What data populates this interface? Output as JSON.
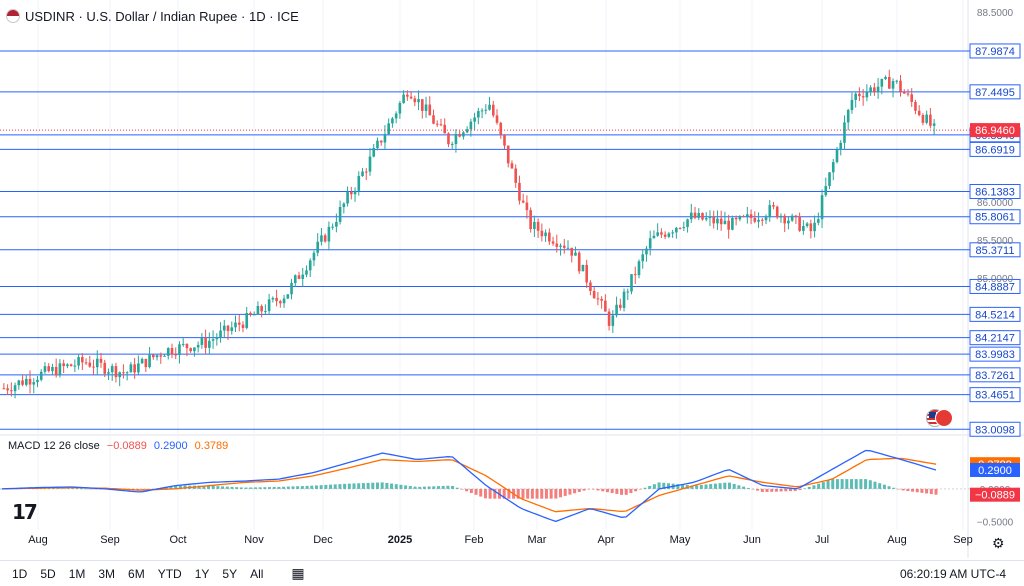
{
  "header": {
    "title": "USDINR · U.S. Dollar / Indian Rupee · 1D · ICE"
  },
  "macd_legend": {
    "label": "MACD 12 26 close",
    "hist": "−0.0889",
    "macd": "0.2900",
    "signal": "0.3789"
  },
  "colors": {
    "up": "#26a69a",
    "down": "#ef5350",
    "hline": "#2962ff",
    "macd_line": "#2962ff",
    "signal_line": "#ff6d00",
    "price_badge": "#f23645",
    "grid": "#f0f3fa"
  },
  "bottom_bar": {
    "timeframes": [
      "1D",
      "5D",
      "1M",
      "3M",
      "6M",
      "YTD",
      "1Y",
      "5Y",
      "All"
    ],
    "clock": "06:20:19 AM UTC-4"
  },
  "chart_data": [
    {
      "type": "candlestick",
      "symbol": "USDINR",
      "x_ticks": [
        "Aug",
        "Sep",
        "Oct",
        "Nov",
        "Dec",
        "2025",
        "Feb",
        "Mar",
        "Apr",
        "May",
        "Jun",
        "Jul",
        "Aug",
        "Sep"
      ],
      "y_ticks": [
        "88.5000",
        "86.0000",
        "85.5000",
        "85.0000"
      ],
      "ylim": [
        83.0,
        88.5
      ],
      "last_price": "86.9460",
      "horizontal_levels": [
        "87.9874",
        "87.4495",
        "86.8840",
        "86.6919",
        "86.1383",
        "85.8061",
        "85.3711",
        "84.8887",
        "84.5214",
        "84.2147",
        "83.9983",
        "83.7261",
        "83.4651",
        "83.0098"
      ],
      "monthly_path": [
        {
          "month": "Jul",
          "value": 83.55
        },
        {
          "month": "Aug",
          "value": 83.75
        },
        {
          "month": "Sep",
          "value": 83.9
        },
        {
          "month": "Oct",
          "value": 83.75
        },
        {
          "month": "Oct-end",
          "value": 84.05
        },
        {
          "month": "Nov",
          "value": 84.15
        },
        {
          "month": "Nov-end",
          "value": 84.45
        },
        {
          "month": "Dec",
          "value": 84.8
        },
        {
          "month": "2025",
          "value": 85.6
        },
        {
          "month": "Jan-mid",
          "value": 86.5
        },
        {
          "month": "Feb",
          "value": 87.5
        },
        {
          "month": "Feb-mid",
          "value": 86.8
        },
        {
          "month": "Mar",
          "value": 87.3
        },
        {
          "month": "Apr",
          "value": 85.7
        },
        {
          "month": "Apr-mid",
          "value": 85.4
        },
        {
          "month": "May",
          "value": 84.4
        },
        {
          "month": "May-mid",
          "value": 85.5
        },
        {
          "month": "Jun",
          "value": 85.8
        },
        {
          "month": "Jun-mid",
          "value": 85.7
        },
        {
          "month": "Jul",
          "value": 85.9
        },
        {
          "month": "Jul-mid",
          "value": 85.6
        },
        {
          "month": "Aug",
          "value": 87.4
        },
        {
          "month": "Aug-mid",
          "value": 87.6
        },
        {
          "month": "Aug-last",
          "value": 86.946
        }
      ]
    },
    {
      "type": "macd",
      "label": "MACD 12 26 close",
      "y_ticks": [
        "0.0000",
        "−0.5000"
      ],
      "badges": [
        "0.3789",
        "0.2900",
        "−0.0889"
      ],
      "macd_path": [
        0.0,
        0.02,
        0.03,
        0.0,
        -0.05,
        0.05,
        0.1,
        0.12,
        0.15,
        0.25,
        0.4,
        0.55,
        0.45,
        0.5,
        0.05,
        -0.3,
        -0.5,
        -0.3,
        -0.45,
        0.0,
        0.1,
        0.3,
        0.05,
        0.0,
        0.3,
        0.6,
        0.45,
        0.29
      ],
      "signal_path": [
        0.0,
        0.01,
        0.02,
        0.01,
        -0.02,
        0.0,
        0.05,
        0.1,
        0.12,
        0.2,
        0.32,
        0.45,
        0.42,
        0.45,
        0.2,
        -0.15,
        -0.35,
        -0.3,
        -0.35,
        -0.1,
        0.05,
        0.2,
        0.1,
        0.03,
        0.15,
        0.45,
        0.47,
        0.3789
      ]
    }
  ]
}
